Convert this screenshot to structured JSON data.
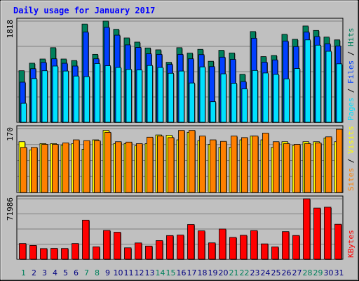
{
  "chart_data": {
    "type": "bar",
    "title": "Daily usage for January 2017",
    "colors": {
      "background": "#c0c0c0",
      "plot": "#c0c0c0",
      "title": "#0000ff",
      "hits": "#00805c",
      "files": "#0040ff",
      "pages": "#00e0ff",
      "visits": "#ffff00",
      "sites": "#ff8000",
      "kbytes": "#ff0000",
      "weekday_label": "#000080",
      "weekend_label": "#00805c"
    },
    "categories": [
      "1",
      "2",
      "3",
      "4",
      "5",
      "6",
      "7",
      "8",
      "9",
      "10",
      "11",
      "12",
      "13",
      "14",
      "15",
      "16",
      "17",
      "18",
      "19",
      "20",
      "21",
      "22",
      "23",
      "24",
      "25",
      "26",
      "27",
      "28",
      "29",
      "30",
      "31"
    ],
    "weekend_days": [
      "1",
      "7",
      "8",
      "14",
      "15",
      "21",
      "22",
      "28",
      "29"
    ],
    "panels": [
      {
        "id": "hits-files-pages",
        "ymax_label": "1818",
        "ymax": 1818,
        "legend": [
          {
            "text": "Pages",
            "color": "#00e0ff"
          },
          {
            "text": " / ",
            "color": "#000000"
          },
          {
            "text": "Files",
            "color": "#0040ff"
          },
          {
            "text": " / ",
            "color": "#000000"
          },
          {
            "text": "Hits",
            "color": "#00805c"
          }
        ],
        "series": [
          {
            "name": "Hits",
            "values": [
              926,
              1061,
              1136,
              1340,
              1136,
              1109,
              1765,
              1220,
              1818,
              1670,
              1515,
              1440,
              1335,
              1301,
              1077,
              1340,
              1243,
              1310,
              1096,
              1293,
              1245,
              862,
              1630,
              1180,
              1200,
              1580,
              1490,
              1730,
              1650,
              1530,
              1480
            ]
          },
          {
            "name": "Files",
            "values": [
              720,
              962,
              1075,
              1140,
              1060,
              1010,
              1620,
              1140,
              1705,
              1565,
              1390,
              1345,
              1230,
              1220,
              1040,
              1220,
              1140,
              1215,
              1000,
              1170,
              1130,
              730,
              1510,
              1080,
              1120,
              1460,
              1360,
              1620,
              1540,
              1410,
              1370
            ]
          },
          {
            "name": "Pages",
            "values": [
              340,
              785,
              925,
              1010,
              920,
              830,
              820,
              1055,
              1015,
              985,
              950,
              940,
              1020,
              985,
              880,
              920,
              705,
              995,
              370,
              870,
              700,
              600,
              930,
              885,
              860,
              780,
              965,
              1480,
              1385,
              1275,
              1050
            ]
          }
        ]
      },
      {
        "id": "visits-sites",
        "ymax_label": "170",
        "ymax": 170,
        "legend": [
          {
            "text": "Sites",
            "color": "#ff8000"
          },
          {
            "text": " / ",
            "color": "#000000"
          },
          {
            "text": "Visits",
            "color": "#ffff00"
          }
        ],
        "series": [
          {
            "name": "Visits",
            "values": [
              135,
              113,
              130,
              130,
              126,
              130,
              115,
              140,
              165,
              130,
              130,
              124,
              130,
              153,
              152,
              140,
              160,
              138,
              128,
              120,
              120,
              140,
              150,
              140,
              120,
              135,
              125,
              135,
              135,
              145,
              135
            ]
          },
          {
            "name": "Sites",
            "values": [
              120,
              120,
              128,
              128,
              132,
              140,
              138,
              138,
              160,
              135,
              134,
              130,
              147,
              150,
              146,
              165,
              165,
              150,
              140,
              136,
              150,
              146,
              150,
              158,
              135,
              130,
              128,
              130,
              132,
              148,
              168
            ]
          }
        ]
      },
      {
        "id": "kbytes",
        "ymax_label": "71986",
        "ymax": 71986,
        "legend": [
          {
            "text": "KBytes",
            "color": "#ff0000"
          }
        ],
        "series": [
          {
            "name": "KBytes",
            "values": [
              18700,
              16400,
              12700,
              12900,
              12800,
              18700,
              46600,
              14800,
              34300,
              32200,
              13600,
              19400,
              15700,
              22200,
              28200,
              28800,
              41400,
              33800,
              19500,
              36000,
              26000,
              28500,
              34100,
              18300,
              14700,
              32900,
              28300,
              71986,
              61000,
              62000,
              41700
            ]
          }
        ]
      }
    ]
  }
}
